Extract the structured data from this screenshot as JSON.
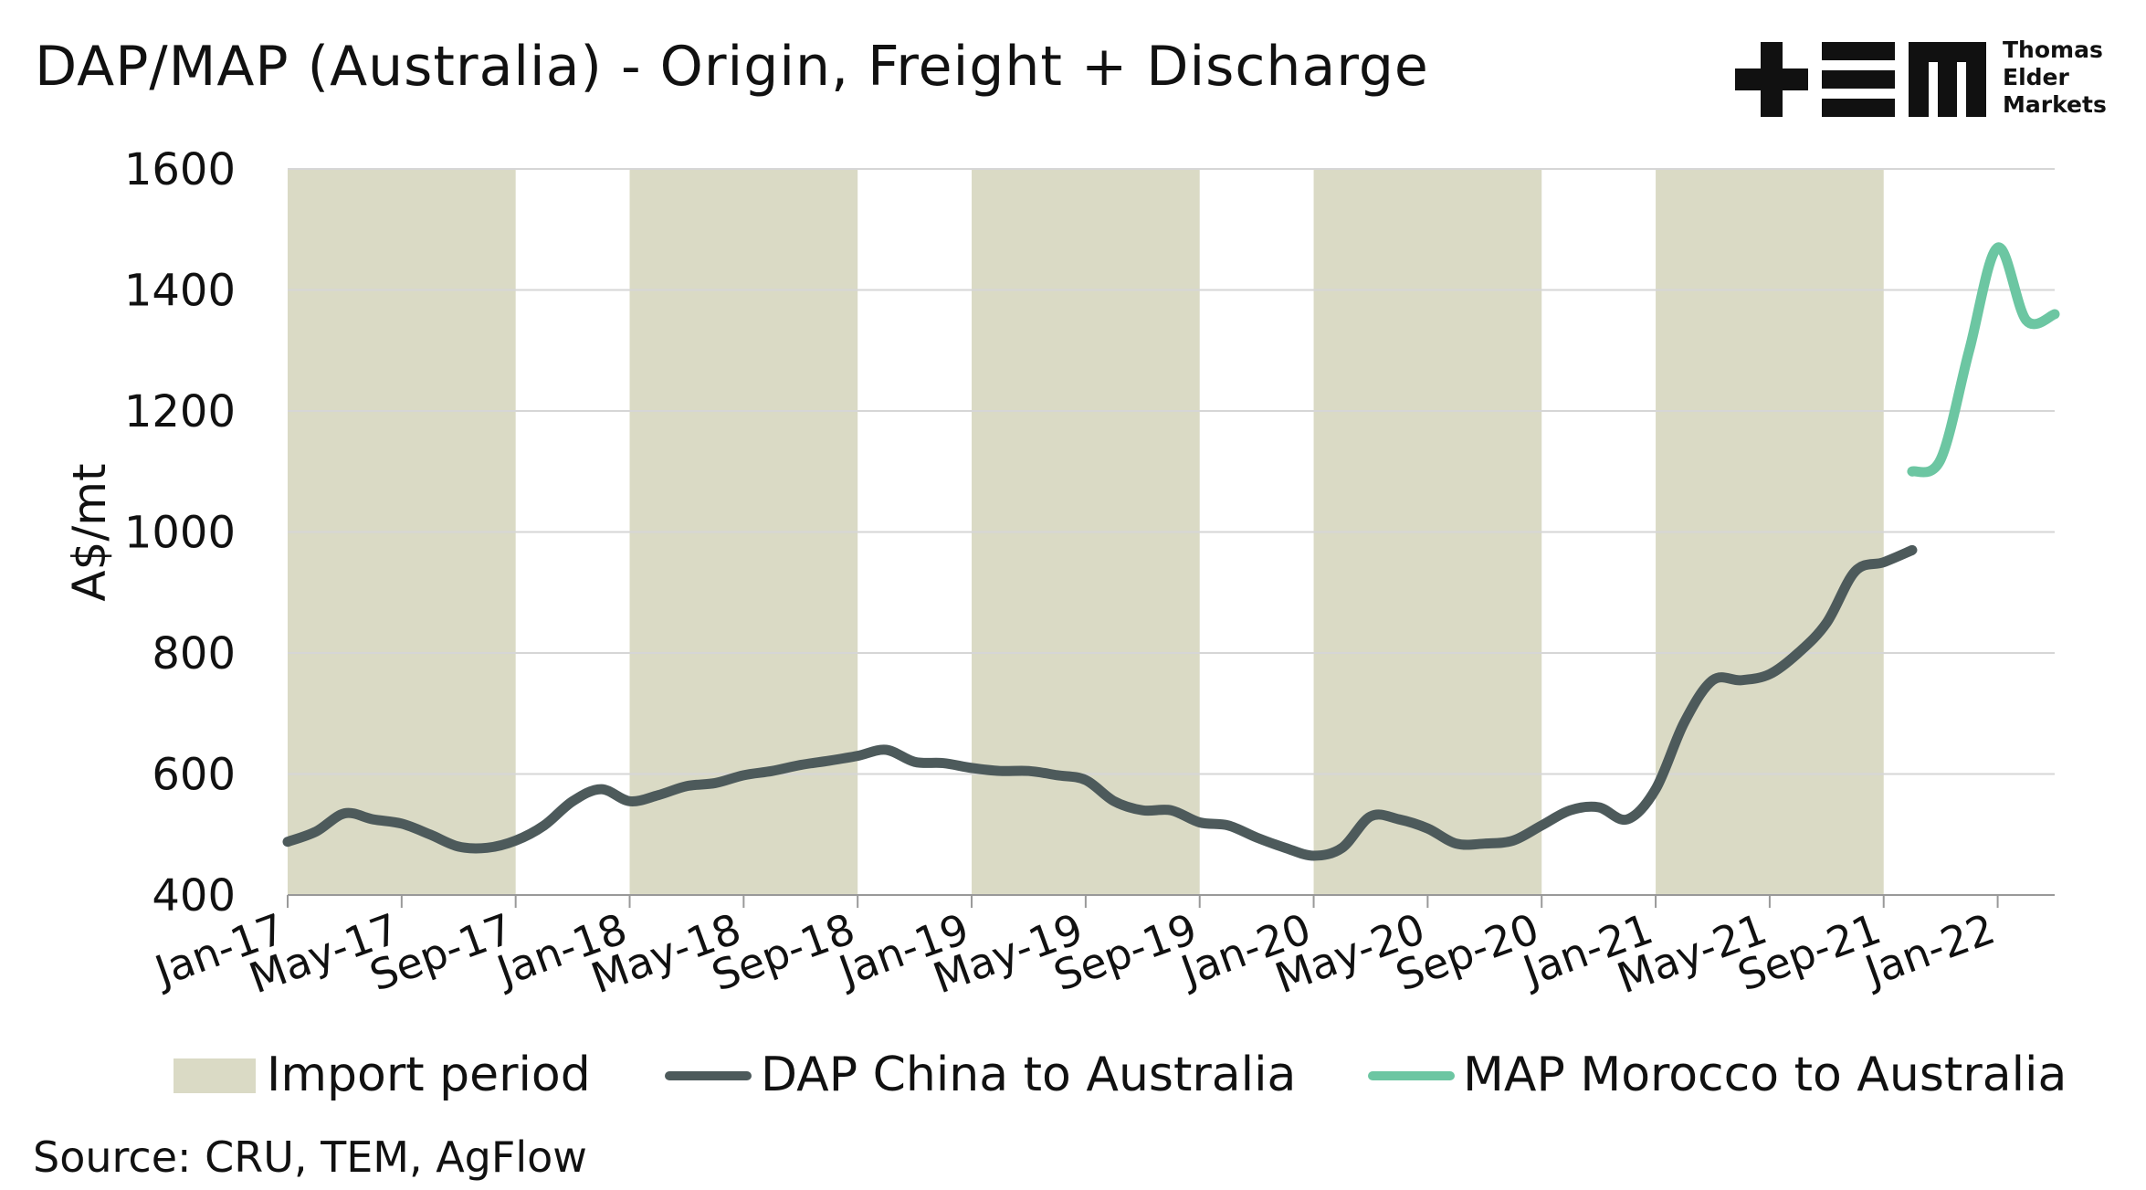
{
  "title": "DAP/MAP (Australia) - Origin, Freight + Discharge",
  "source": "Source: CRU, TEM, AgFlow",
  "logo": {
    "name": "tem-logo",
    "lines": [
      "Thomas",
      "Elder",
      "Markets"
    ]
  },
  "colors": {
    "dap": "#4d5a5b",
    "map": "#6cc6a2",
    "import_period": "#dadac5",
    "grid": "#d6d6d6",
    "axis": "#999999"
  },
  "chart_data": {
    "type": "line",
    "ylabel": "A$/mt",
    "xlabel": "",
    "ylim": [
      400,
      1600
    ],
    "yticks": [
      400,
      600,
      800,
      1000,
      1200,
      1400,
      1600
    ],
    "xlim": [
      "2017-01",
      "2022-03"
    ],
    "xticks": [
      "Jan-17",
      "May-17",
      "Sep-17",
      "Jan-18",
      "May-18",
      "Sep-18",
      "Jan-19",
      "May-19",
      "Sep-19",
      "Jan-20",
      "May-20",
      "Sep-20",
      "Jan-21",
      "May-21",
      "Sep-21",
      "Jan-22"
    ],
    "grid": true,
    "legend_position": "bottom",
    "import_periods": [
      [
        "2017-01",
        "2017-09"
      ],
      [
        "2018-01",
        "2018-09"
      ],
      [
        "2019-01",
        "2019-09"
      ],
      [
        "2020-01",
        "2020-09"
      ],
      [
        "2021-01",
        "2021-09"
      ]
    ],
    "legend": [
      "Import period",
      "DAP China to Australia",
      "MAP Morocco to Australia"
    ],
    "series": [
      {
        "name": "DAP China to Australia",
        "x": [
          "2017-01",
          "2017-02",
          "2017-03",
          "2017-04",
          "2017-05",
          "2017-06",
          "2017-07",
          "2017-08",
          "2017-09",
          "2017-10",
          "2017-11",
          "2017-12",
          "2018-01",
          "2018-02",
          "2018-03",
          "2018-04",
          "2018-05",
          "2018-06",
          "2018-07",
          "2018-08",
          "2018-09",
          "2018-10",
          "2018-11",
          "2018-12",
          "2019-01",
          "2019-02",
          "2019-03",
          "2019-04",
          "2019-05",
          "2019-06",
          "2019-07",
          "2019-08",
          "2019-09",
          "2019-10",
          "2019-11",
          "2019-12",
          "2020-01",
          "2020-02",
          "2020-03",
          "2020-04",
          "2020-05",
          "2020-06",
          "2020-07",
          "2020-08",
          "2020-09",
          "2020-10",
          "2020-11",
          "2020-12",
          "2021-01",
          "2021-02",
          "2021-03",
          "2021-04",
          "2021-05",
          "2021-06",
          "2021-07",
          "2021-08",
          "2021-09",
          "2021-10"
        ],
        "values": [
          488,
          505,
          535,
          525,
          518,
          500,
          480,
          478,
          490,
          515,
          555,
          575,
          555,
          565,
          580,
          585,
          598,
          605,
          615,
          622,
          630,
          640,
          620,
          618,
          610,
          605,
          605,
          598,
          590,
          555,
          540,
          540,
          520,
          515,
          495,
          478,
          465,
          478,
          530,
          525,
          510,
          485,
          485,
          490,
          515,
          540,
          545,
          525,
          575,
          685,
          755,
          755,
          765,
          800,
          850,
          935,
          950,
          970
        ]
      },
      {
        "name": "MAP Morocco to Australia",
        "x": [
          "2021-10",
          "2021-11",
          "2021-12",
          "2022-01",
          "2022-02",
          "2022-03"
        ],
        "values": [
          1100,
          1120,
          1300,
          1470,
          1350,
          1360
        ]
      }
    ]
  }
}
